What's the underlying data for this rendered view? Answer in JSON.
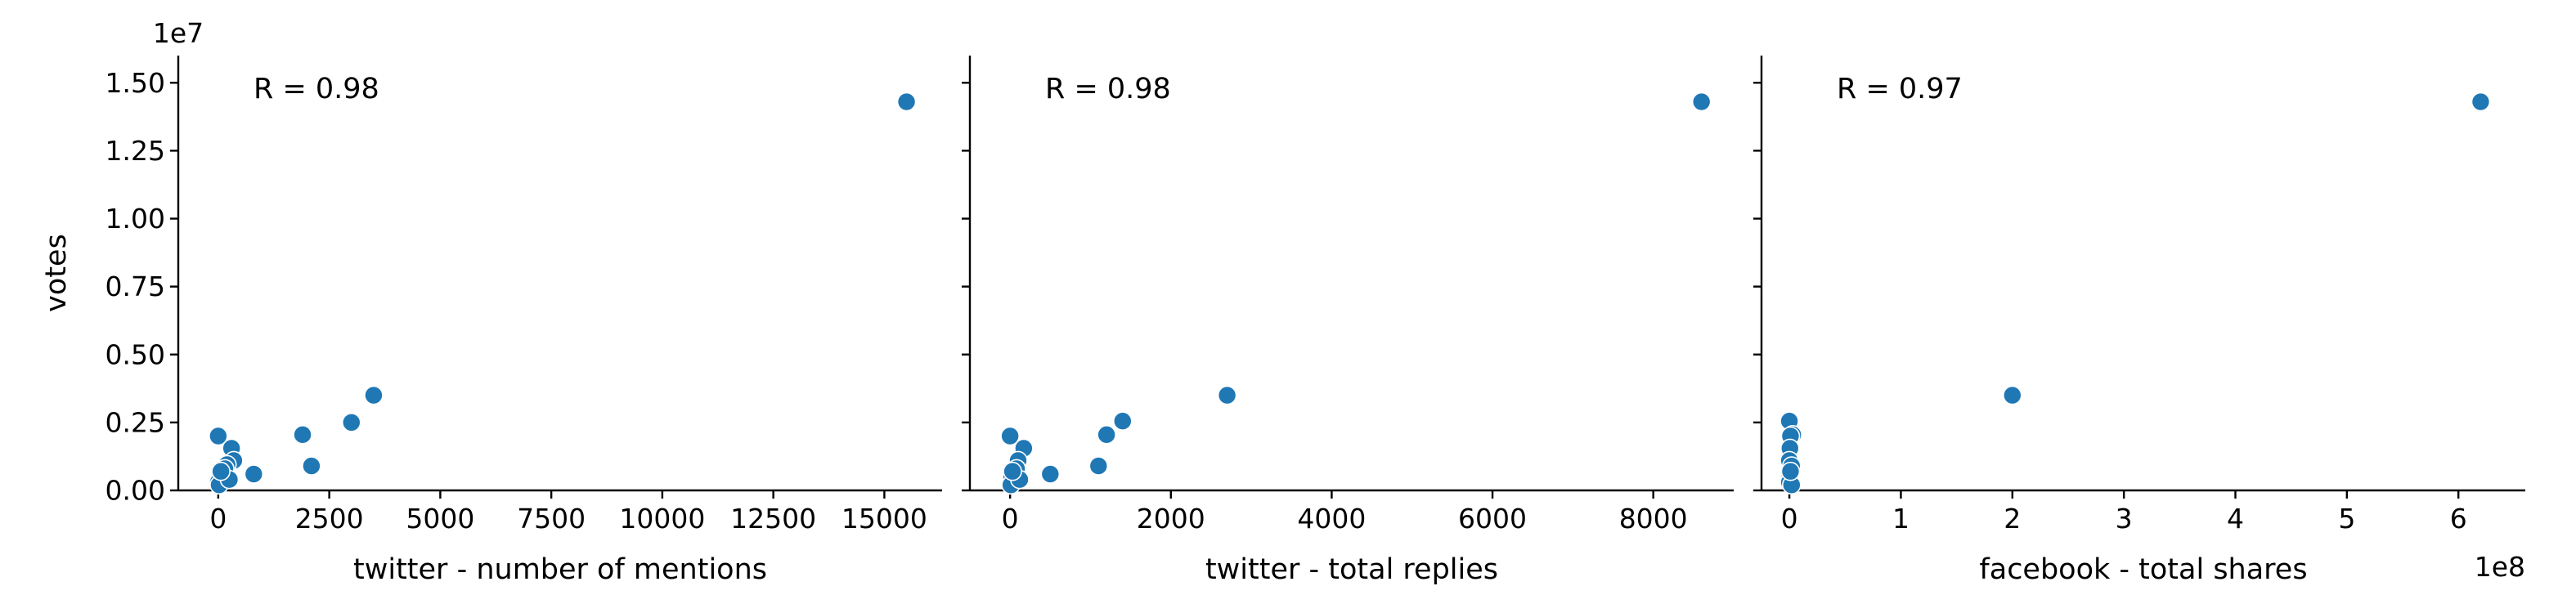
{
  "chart_data": [
    {
      "type": "scatter",
      "xlabel": "twitter - number of mentions",
      "ylabel": "votes",
      "y_offset_label": "1e7",
      "x_offset_label": "",
      "annotation": "R = 0.98",
      "xlim": [
        -900,
        16300
      ],
      "ylim": [
        0,
        16000000
      ],
      "xticks": [
        0,
        2500,
        5000,
        7500,
        10000,
        12500,
        15000
      ],
      "xtick_labels": [
        "0",
        "2500",
        "5000",
        "7500",
        "10000",
        "12500",
        "15000"
      ],
      "yticks": [
        0,
        2500000,
        5000000,
        7500000,
        10000000,
        12500000,
        15000000
      ],
      "ytick_labels": [
        "0.00",
        "0.25",
        "0.50",
        "0.75",
        "1.00",
        "1.25",
        "1.50"
      ],
      "color": "#1f77b4",
      "x": [
        15500,
        3500,
        3000,
        1900,
        2100,
        0,
        300,
        350,
        200,
        800,
        50,
        100,
        150,
        0,
        20,
        250,
        60
      ],
      "y": [
        14300000,
        3500000,
        2500000,
        2050000,
        900000,
        2000000,
        1550000,
        1100000,
        950000,
        600000,
        650000,
        500000,
        800000,
        300000,
        200000,
        400000,
        700000
      ]
    },
    {
      "type": "scatter",
      "xlabel": "twitter - total replies",
      "ylabel": "",
      "y_offset_label": "",
      "x_offset_label": "",
      "annotation": "R = 0.98",
      "xlim": [
        -500,
        9000
      ],
      "ylim": [
        0,
        16000000
      ],
      "xticks": [
        0,
        2000,
        4000,
        6000,
        8000
      ],
      "xtick_labels": [
        "0",
        "2000",
        "4000",
        "6000",
        "8000"
      ],
      "yticks": [
        0,
        2500000,
        5000000,
        7500000,
        10000000,
        12500000,
        15000000
      ],
      "ytick_labels": [
        "",
        "",
        "",
        "",
        "",
        "",
        ""
      ],
      "color": "#1f77b4",
      "x": [
        8600,
        2700,
        1400,
        1200,
        1100,
        0,
        170,
        100,
        500,
        60,
        20,
        80,
        40,
        10,
        120,
        30
      ],
      "y": [
        14300000,
        3500000,
        2550000,
        2050000,
        900000,
        2000000,
        1550000,
        1100000,
        600000,
        650000,
        500000,
        800000,
        300000,
        200000,
        400000,
        700000
      ]
    },
    {
      "type": "scatter",
      "xlabel": "facebook - total shares",
      "ylabel": "",
      "y_offset_label": "",
      "x_offset_label": "1e8",
      "annotation": "R = 0.97",
      "xlim": [
        -25000000,
        660000000
      ],
      "ylim": [
        0,
        16000000
      ],
      "xticks": [
        0,
        100000000,
        200000000,
        300000000,
        400000000,
        500000000,
        600000000
      ],
      "xtick_labels": [
        "0",
        "1",
        "2",
        "3",
        "4",
        "5",
        "6"
      ],
      "yticks": [
        0,
        2500000,
        5000000,
        7500000,
        10000000,
        12500000,
        15000000
      ],
      "ytick_labels": [
        "",
        "",
        "",
        "",
        "",
        "",
        ""
      ],
      "color": "#1f77b4",
      "x": [
        620000000,
        200000000,
        0,
        3000000,
        1000000,
        500000,
        0,
        2000000,
        0,
        1000000,
        500000,
        0,
        2000000,
        1000000
      ],
      "y": [
        14300000,
        3500000,
        2550000,
        2050000,
        2000000,
        1550000,
        1100000,
        900000,
        650000,
        600000,
        500000,
        300000,
        200000,
        700000
      ]
    }
  ]
}
